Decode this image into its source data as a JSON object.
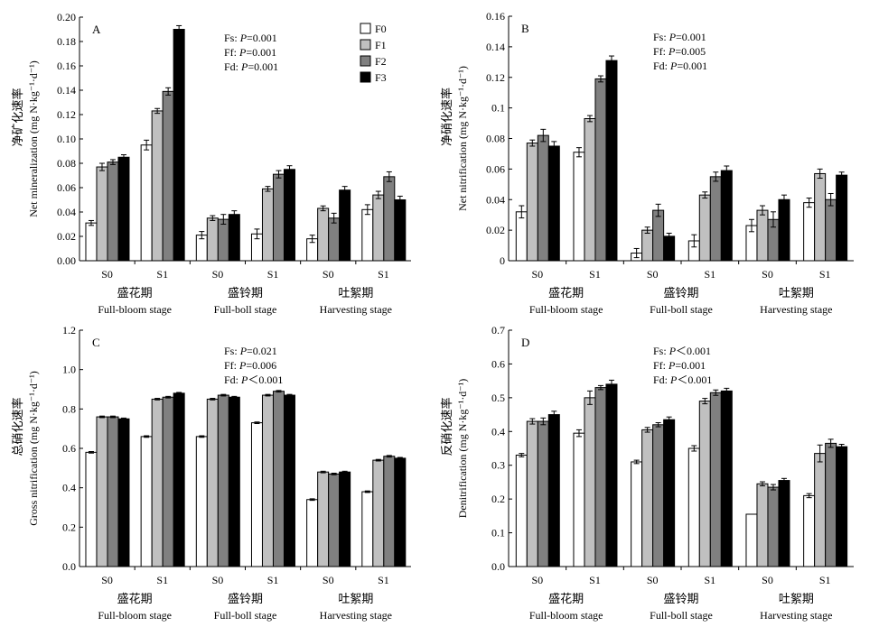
{
  "legend": [
    {
      "label": "F0",
      "color": "#ffffff"
    },
    {
      "label": "F1",
      "color": "#c0c0c0"
    },
    {
      "label": "F2",
      "color": "#808080"
    },
    {
      "label": "F3",
      "color": "#000000"
    }
  ],
  "chart_data": [
    {
      "type": "bar",
      "panel": "A",
      "ylabel_cn": "净矿化速率",
      "ylabel": "Net mineralization (mg N·kg⁻¹·d⁻¹)",
      "ylim": [
        0,
        0.2
      ],
      "yticks": [
        "0.00",
        "0.02",
        "0.04",
        "0.06",
        "0.08",
        "0.10",
        "0.12",
        "0.14",
        "0.16",
        "0.18",
        "0.20"
      ],
      "stats": [
        {
          "pre": "Fs: ",
          "p": "P",
          "post": "=0.001"
        },
        {
          "pre": "Ff: ",
          "p": "P",
          "post": "=0.001"
        },
        {
          "pre": "Fd: ",
          "p": "P",
          "post": "=0.001"
        }
      ],
      "stages": [
        {
          "cn": "盛花期",
          "en": "Full-bloom stage"
        },
        {
          "cn": "盛铃期",
          "en": "Full-boll stage"
        },
        {
          "cn": "吐絮期",
          "en": "Harvesting stage"
        }
      ],
      "categories": [
        "S0",
        "S1",
        "S0",
        "S1",
        "S0",
        "S1"
      ],
      "series": [
        {
          "name": "F0",
          "values": [
            0.031,
            0.095,
            0.021,
            0.022,
            0.018,
            0.042
          ],
          "errors": [
            0.002,
            0.004,
            0.003,
            0.004,
            0.003,
            0.004
          ]
        },
        {
          "name": "F1",
          "values": [
            0.077,
            0.123,
            0.035,
            0.059,
            0.043,
            0.054
          ],
          "errors": [
            0.003,
            0.002,
            0.002,
            0.002,
            0.002,
            0.003
          ]
        },
        {
          "name": "F2",
          "values": [
            0.081,
            0.139,
            0.034,
            0.071,
            0.035,
            0.069
          ],
          "errors": [
            0.002,
            0.003,
            0.004,
            0.003,
            0.004,
            0.004
          ]
        },
        {
          "name": "F3",
          "values": [
            0.085,
            0.19,
            0.038,
            0.075,
            0.058,
            0.05
          ],
          "errors": [
            0.002,
            0.003,
            0.003,
            0.003,
            0.003,
            0.003
          ]
        }
      ]
    },
    {
      "type": "bar",
      "panel": "B",
      "ylabel_cn": "净硝化速率",
      "ylabel": "Net nitrification (mg N·kg⁻¹·d⁻¹)",
      "ylim": [
        0,
        0.16
      ],
      "yticks": [
        "0",
        "0.02",
        "0.04",
        "0.06",
        "0.08",
        "0.1",
        "0.12",
        "0.14",
        "0.16"
      ],
      "stats": [
        {
          "pre": "Fs: ",
          "p": "P",
          "post": "=0.001"
        },
        {
          "pre": "Ff: ",
          "p": "P",
          "post": "=0.005"
        },
        {
          "pre": "Fd: ",
          "p": "P",
          "post": "=0.001"
        }
      ],
      "stages": [
        {
          "cn": "盛花期",
          "en": "Full-bloom stage"
        },
        {
          "cn": "盛铃期",
          "en": "Full-boll stage"
        },
        {
          "cn": "吐絮期",
          "en": "Harvesting stage"
        }
      ],
      "categories": [
        "S0",
        "S1",
        "S0",
        "S1",
        "S0",
        "S1"
      ],
      "series": [
        {
          "name": "F0",
          "values": [
            0.032,
            0.071,
            0.005,
            0.013,
            0.023,
            0.038
          ],
          "errors": [
            0.004,
            0.003,
            0.003,
            0.004,
            0.004,
            0.003
          ]
        },
        {
          "name": "F1",
          "values": [
            0.077,
            0.093,
            0.02,
            0.043,
            0.033,
            0.057
          ],
          "errors": [
            0.002,
            0.002,
            0.002,
            0.002,
            0.003,
            0.003
          ]
        },
        {
          "name": "F2",
          "values": [
            0.082,
            0.119,
            0.033,
            0.055,
            0.027,
            0.04
          ],
          "errors": [
            0.004,
            0.002,
            0.004,
            0.003,
            0.005,
            0.004
          ]
        },
        {
          "name": "F3",
          "values": [
            0.075,
            0.131,
            0.016,
            0.059,
            0.04,
            0.056
          ],
          "errors": [
            0.003,
            0.003,
            0.002,
            0.003,
            0.003,
            0.002
          ]
        }
      ]
    },
    {
      "type": "bar",
      "panel": "C",
      "ylabel_cn": "总硝化速率",
      "ylabel": "Gross nitrification (mg N·kg⁻¹·d⁻¹)",
      "ylim": [
        0,
        1.2
      ],
      "yticks": [
        "0.0",
        "0.2",
        "0.4",
        "0.6",
        "0.8",
        "1.0",
        "1.2"
      ],
      "stats": [
        {
          "pre": "Fs: ",
          "p": "P",
          "post": "=0.021"
        },
        {
          "pre": "Ff: ",
          "p": "P",
          "post": "=0.006"
        },
        {
          "pre": "Fd: ",
          "p": "P",
          "post": "＜0.001"
        }
      ],
      "stages": [
        {
          "cn": "盛花期",
          "en": "Full-bloom stage"
        },
        {
          "cn": "盛铃期",
          "en": "Full-boll stage"
        },
        {
          "cn": "吐絮期",
          "en": "Harvesting stage"
        }
      ],
      "categories": [
        "S0",
        "S1",
        "S0",
        "S1",
        "S0",
        "S1"
      ],
      "series": [
        {
          "name": "F0",
          "values": [
            0.58,
            0.66,
            0.66,
            0.73,
            0.34,
            0.38
          ],
          "errors": [
            0.004,
            0.004,
            0.004,
            0.004,
            0.004,
            0.004
          ]
        },
        {
          "name": "F1",
          "values": [
            0.76,
            0.85,
            0.85,
            0.87,
            0.48,
            0.54
          ],
          "errors": [
            0.004,
            0.004,
            0.004,
            0.004,
            0.004,
            0.004
          ]
        },
        {
          "name": "F2",
          "values": [
            0.76,
            0.86,
            0.87,
            0.89,
            0.47,
            0.56
          ],
          "errors": [
            0.004,
            0.004,
            0.004,
            0.004,
            0.004,
            0.004
          ]
        },
        {
          "name": "F3",
          "values": [
            0.75,
            0.88,
            0.86,
            0.87,
            0.48,
            0.55
          ],
          "errors": [
            0.004,
            0.004,
            0.004,
            0.004,
            0.004,
            0.004
          ]
        }
      ]
    },
    {
      "type": "bar",
      "panel": "D",
      "ylabel_cn": "反硝化速率",
      "ylabel": "Denitrification (mg N·kg⁻¹·d⁻¹)",
      "ylim": [
        0,
        0.7
      ],
      "yticks": [
        "0.0",
        "0.1",
        "0.2",
        "0.3",
        "0.4",
        "0.5",
        "0.6",
        "0.7"
      ],
      "stats": [
        {
          "pre": "Fs: ",
          "p": "P",
          "post": "＜0.001"
        },
        {
          "pre": "Ff: ",
          "p": "P",
          "post": "=0.001"
        },
        {
          "pre": "Fd: ",
          "p": "P",
          "post": "＜0.001"
        }
      ],
      "stages": [
        {
          "cn": "盛花期",
          "en": "Full-bloom stage"
        },
        {
          "cn": "盛铃期",
          "en": "Full-boll stage"
        },
        {
          "cn": "吐絮期",
          "en": "Harvesting stage"
        }
      ],
      "categories": [
        "S0",
        "S1",
        "S0",
        "S1",
        "S0",
        "S1"
      ],
      "series": [
        {
          "name": "F0",
          "values": [
            0.33,
            0.395,
            0.31,
            0.35,
            0.155,
            0.21
          ],
          "errors": [
            0.005,
            0.01,
            0.005,
            0.008,
            0.0,
            0.006
          ]
        },
        {
          "name": "F1",
          "values": [
            0.43,
            0.5,
            0.405,
            0.49,
            0.245,
            0.335
          ],
          "errors": [
            0.008,
            0.02,
            0.007,
            0.008,
            0.006,
            0.025
          ]
        },
        {
          "name": "F2",
          "values": [
            0.43,
            0.53,
            0.42,
            0.515,
            0.235,
            0.365
          ],
          "errors": [
            0.01,
            0.006,
            0.006,
            0.008,
            0.008,
            0.012
          ]
        },
        {
          "name": "F3",
          "values": [
            0.45,
            0.54,
            0.435,
            0.52,
            0.255,
            0.355
          ],
          "errors": [
            0.01,
            0.012,
            0.008,
            0.008,
            0.006,
            0.007
          ]
        }
      ]
    }
  ]
}
